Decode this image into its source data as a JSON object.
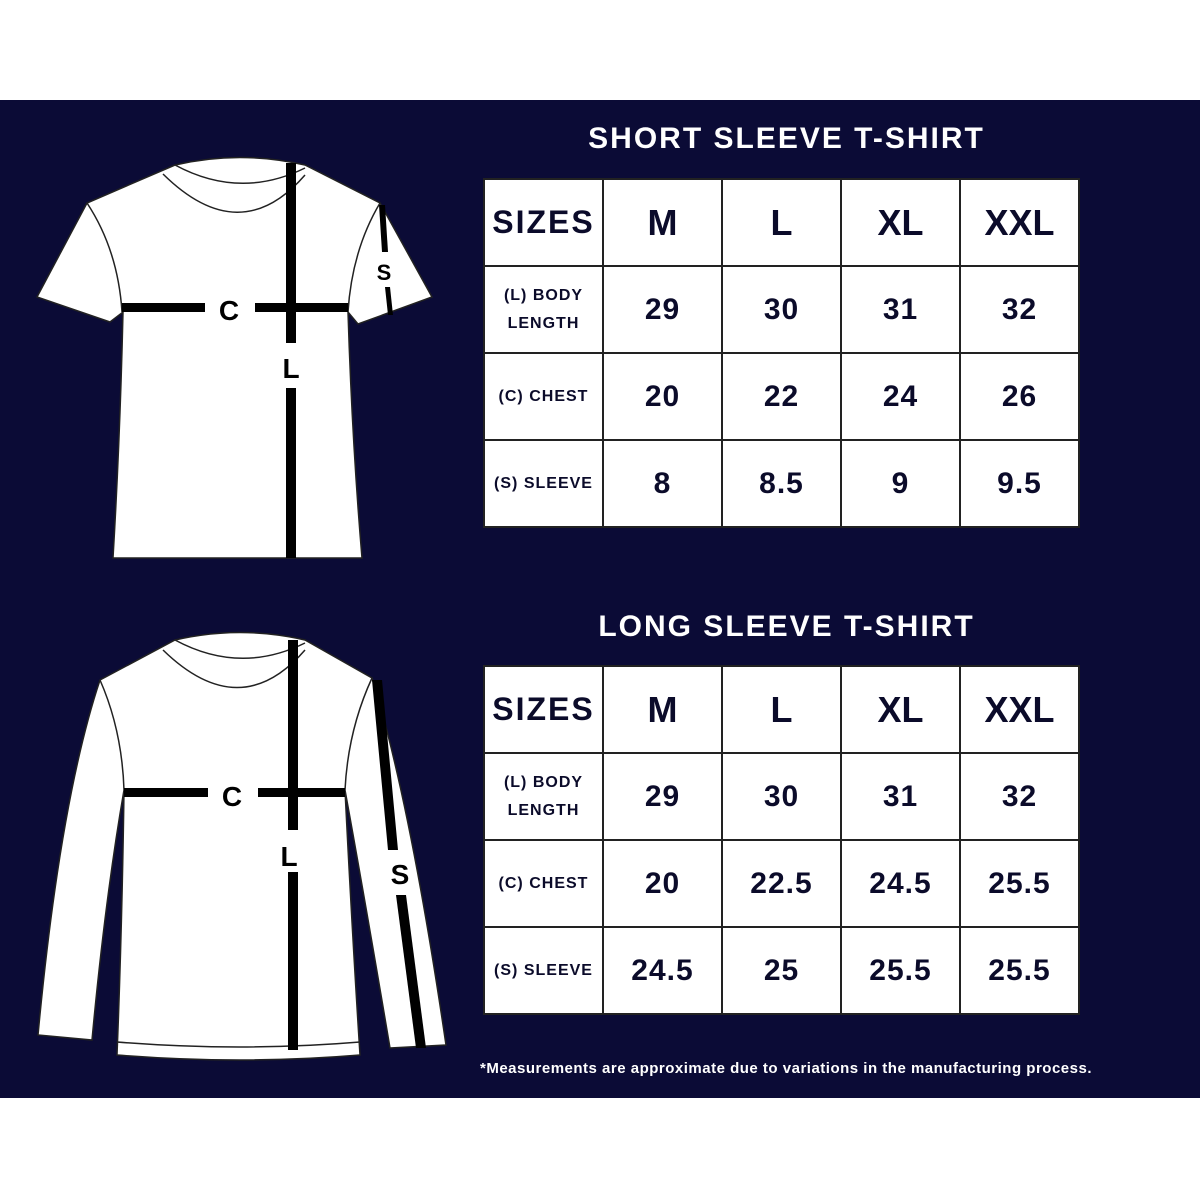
{
  "colors": {
    "background": "#0b0b36",
    "table": "#ffffff",
    "text": "#0b0b2a"
  },
  "short": {
    "title": "SHORT SLEEVE T-SHIRT",
    "diagram_labels": {
      "chest": "C",
      "length": "L",
      "sleeve": "S"
    },
    "headers": [
      "SIZES",
      "M",
      "L",
      "XL",
      "XXL"
    ],
    "rows": [
      {
        "label": "(L) BODY LENGTH",
        "values": [
          "29",
          "30",
          "31",
          "32"
        ]
      },
      {
        "label": "(C) CHEST",
        "values": [
          "20",
          "22",
          "24",
          "26"
        ]
      },
      {
        "label": "(S) SLEEVE",
        "values": [
          "8",
          "8.5",
          "9",
          "9.5"
        ]
      }
    ]
  },
  "long": {
    "title": "LONG SLEEVE T-SHIRT",
    "diagram_labels": {
      "chest": "C",
      "length": "L",
      "sleeve": "S"
    },
    "headers": [
      "SIZES",
      "M",
      "L",
      "XL",
      "XXL"
    ],
    "rows": [
      {
        "label": "(L) BODY LENGTH",
        "values": [
          "29",
          "30",
          "31",
          "32"
        ]
      },
      {
        "label": "(C) CHEST",
        "values": [
          "20",
          "22.5",
          "24.5",
          "25.5"
        ]
      },
      {
        "label": "(S) SLEEVE",
        "values": [
          "24.5",
          "25",
          "25.5",
          "25.5"
        ]
      }
    ]
  },
  "footnote": "*Measurements are approximate due to variations in the manufacturing process."
}
